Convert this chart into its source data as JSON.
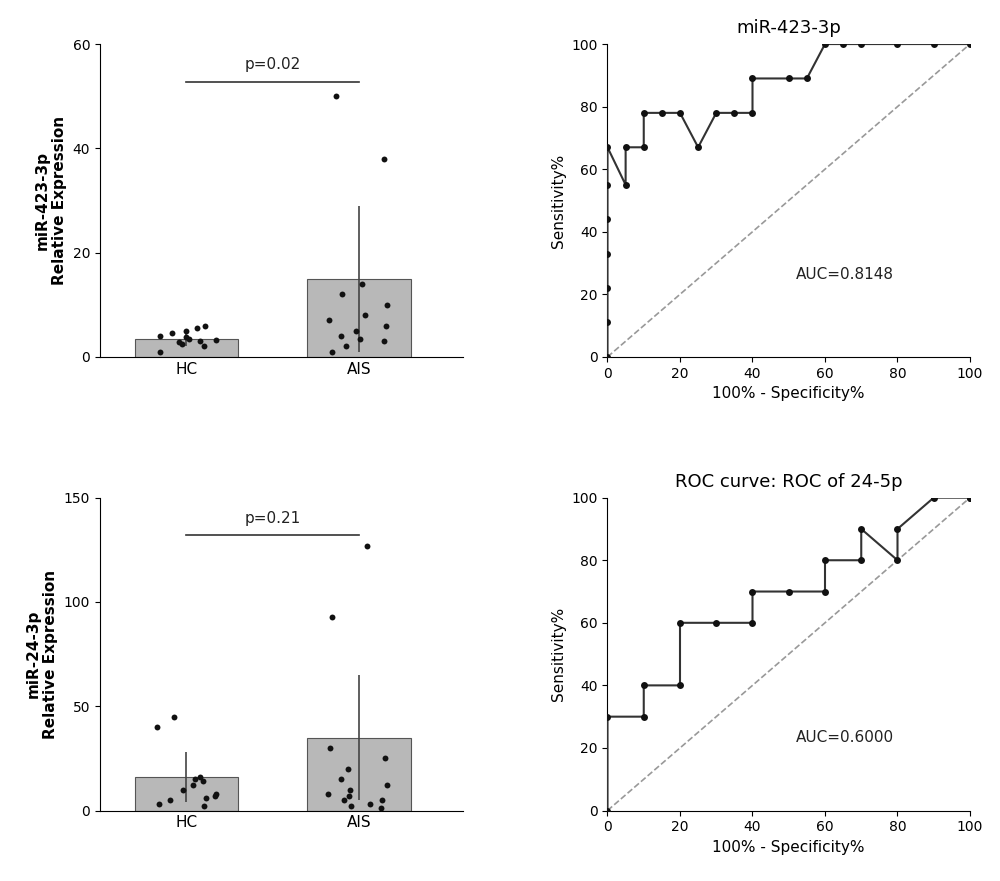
{
  "plot1": {
    "title": "",
    "ylabel": "miR-423-3p\nRelative Expression",
    "categories": [
      "HC",
      "AIS"
    ],
    "bar_means": [
      3.5,
      15.0
    ],
    "bar_errors": [
      1.5,
      14.0
    ],
    "bar_color": "#b8b8b8",
    "hc_dots": [
      1.0,
      2.0,
      2.5,
      3.0,
      3.2,
      3.5,
      3.8,
      4.0,
      4.5,
      5.0,
      5.5,
      6.0,
      2.8
    ],
    "ais_dots": [
      1.0,
      2.0,
      3.0,
      4.0,
      5.0,
      6.0,
      7.0,
      8.0,
      10.0,
      12.0,
      14.0,
      38.0,
      50.0,
      3.5
    ],
    "pvalue": "p=0.02",
    "ylim": [
      0,
      60
    ],
    "yticks": [
      0,
      20,
      40,
      60
    ]
  },
  "plot2": {
    "title": "miR-423-3p",
    "xlabel": "100% - Specificity%",
    "ylabel": "Sensitivity%",
    "auc_text": "AUC=0.8148",
    "auc_x": 52,
    "auc_y": 25,
    "roc_x": [
      0,
      0,
      0,
      0,
      0,
      0,
      0,
      5,
      5,
      10,
      10,
      15,
      20,
      25,
      30,
      35,
      40,
      40,
      50,
      55,
      60,
      65,
      70,
      80,
      90,
      100
    ],
    "roc_y": [
      0,
      11,
      22,
      33,
      44,
      55,
      67,
      55,
      67,
      67,
      78,
      78,
      78,
      67,
      78,
      78,
      78,
      89,
      89,
      89,
      100,
      100,
      100,
      100,
      100,
      100
    ],
    "xlim": [
      0,
      100
    ],
    "ylim": [
      0,
      100
    ],
    "xticks": [
      0,
      20,
      40,
      60,
      80,
      100
    ],
    "yticks": [
      0,
      20,
      40,
      60,
      80,
      100
    ]
  },
  "plot3": {
    "title": "",
    "ylabel": "miR-24-3p\nRelative Expression",
    "categories": [
      "HC",
      "AIS"
    ],
    "bar_means": [
      16.0,
      35.0
    ],
    "bar_errors": [
      12.0,
      30.0
    ],
    "bar_color": "#b8b8b8",
    "hc_dots": [
      2.0,
      5.0,
      6.0,
      7.0,
      8.0,
      10.0,
      12.0,
      14.0,
      15.0,
      16.0,
      40.0,
      45.0,
      3.0
    ],
    "ais_dots": [
      1.0,
      2.0,
      3.0,
      5.0,
      7.0,
      8.0,
      10.0,
      12.0,
      15.0,
      20.0,
      25.0,
      30.0,
      93.0,
      127.0,
      5.0
    ],
    "pvalue": "p=0.21",
    "ylim": [
      0,
      150
    ],
    "yticks": [
      0,
      50,
      100,
      150
    ]
  },
  "plot4": {
    "title": "ROC curve: ROC of 24-5p",
    "xlabel": "100% - Specificity%",
    "ylabel": "Sensitivity%",
    "auc_text": "AUC=0.6000",
    "auc_x": 52,
    "auc_y": 22,
    "roc_x": [
      0,
      0,
      10,
      10,
      20,
      20,
      30,
      40,
      40,
      50,
      60,
      60,
      70,
      70,
      80,
      80,
      90,
      100,
      100
    ],
    "roc_y": [
      0,
      30,
      30,
      40,
      40,
      60,
      60,
      60,
      70,
      70,
      70,
      80,
      80,
      90,
      80,
      90,
      100,
      100,
      100
    ],
    "xlim": [
      0,
      100
    ],
    "ylim": [
      0,
      100
    ],
    "xticks": [
      0,
      20,
      40,
      60,
      80,
      100
    ],
    "yticks": [
      0,
      20,
      40,
      60,
      80,
      100
    ]
  },
  "background_color": "#ffffff",
  "bar_edge_color": "#555555",
  "dot_color": "#111111",
  "line_color": "#333333",
  "font_size": 11,
  "title_font_size": 13
}
